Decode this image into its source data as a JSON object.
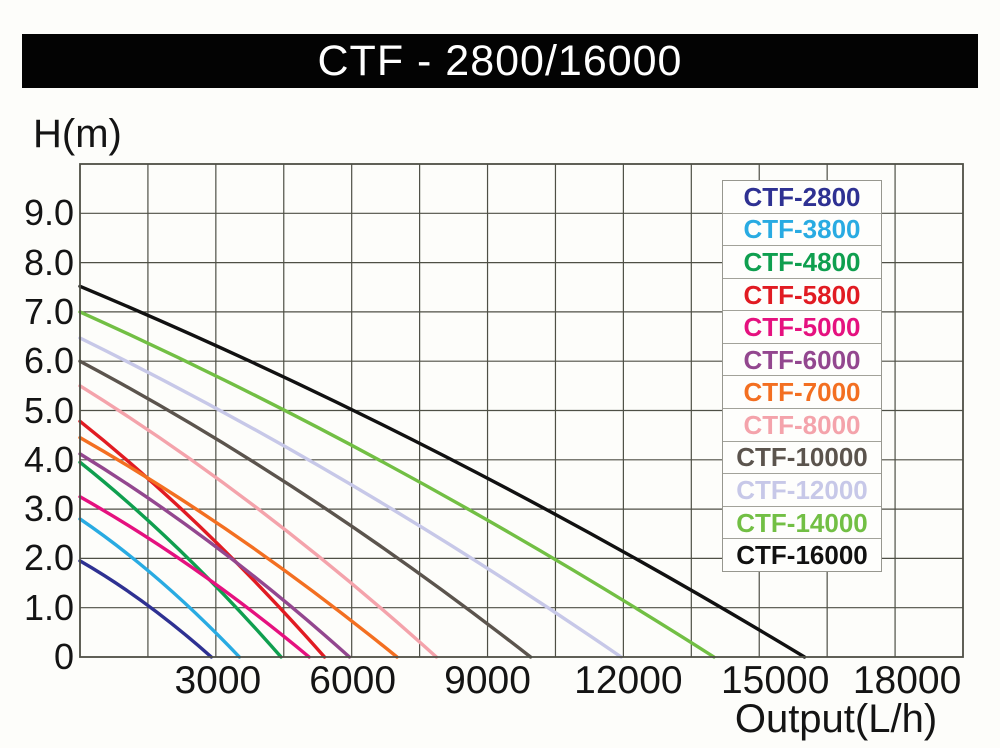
{
  "title_bar": {
    "text": "CTF - 2800/16000"
  },
  "chart_data": {
    "type": "line",
    "title": "CTF - 2800/16000",
    "xlabel": "Output(L/h)",
    "ylabel": "H(m)",
    "xlim": [
      0,
      19500
    ],
    "ylim": [
      0,
      10
    ],
    "x_gridline_step": 1500,
    "y_gridline_step": 1,
    "grid": true,
    "grid_color": "#4e4f45",
    "legend_position": "upper-right",
    "x_ticks": [
      {
        "label": "3000",
        "value": 3000,
        "dx": 2
      },
      {
        "label": "6000",
        "value": 6000,
        "dx": 1
      },
      {
        "label": "9000",
        "value": 9000,
        "dx": 0
      },
      {
        "label": "12000",
        "value": 12000,
        "dx": 5
      },
      {
        "label": "15000",
        "value": 15000,
        "dx": 16
      },
      {
        "label": "18000",
        "value": 18000,
        "dx": 12
      }
    ],
    "y_ticks": [
      {
        "label": "9.0",
        "value": 9
      },
      {
        "label": "8.0",
        "value": 8
      },
      {
        "label": "7.0",
        "value": 7
      },
      {
        "label": "6.0",
        "value": 6
      },
      {
        "label": "5.0",
        "value": 5
      },
      {
        "label": "4.0",
        "value": 4
      },
      {
        "label": "3.0",
        "value": 3
      },
      {
        "label": "2.0",
        "value": 2
      },
      {
        "label": "1.0",
        "value": 1
      },
      {
        "label": "0",
        "value": 0
      }
    ],
    "series": [
      {
        "name": "CTF-2800",
        "color": "#2e3192",
        "shutoff_head_m": 1.95,
        "max_flow_lh": 2900,
        "curve_points": [
          [
            0,
            1.95
          ],
          [
            1450,
            1.08
          ],
          [
            2900,
            0
          ]
        ]
      },
      {
        "name": "CTF-3800",
        "color": "#29abe2",
        "shutoff_head_m": 2.8,
        "max_flow_lh": 3520,
        "curve_points": [
          [
            0,
            2.8
          ],
          [
            1760,
            1.55
          ],
          [
            3520,
            0
          ]
        ]
      },
      {
        "name": "CTF-4800",
        "color": "#0f9f4f",
        "shutoff_head_m": 3.95,
        "max_flow_lh": 4440,
        "curve_points": [
          [
            0,
            3.95
          ],
          [
            2220,
            2.15
          ],
          [
            4440,
            0
          ]
        ]
      },
      {
        "name": "CTF-5800",
        "color": "#e11b22",
        "shutoff_head_m": 4.78,
        "max_flow_lh": 5400,
        "curve_points": [
          [
            0,
            4.78
          ],
          [
            2700,
            2.6
          ],
          [
            5400,
            0
          ]
        ]
      },
      {
        "name": "CTF-5000",
        "color": "#e5117f",
        "shutoff_head_m": 3.25,
        "max_flow_lh": 5060,
        "curve_points": [
          [
            0,
            3.25
          ],
          [
            2530,
            1.78
          ],
          [
            5060,
            0
          ]
        ]
      },
      {
        "name": "CTF-6000",
        "color": "#93478f",
        "shutoff_head_m": 4.12,
        "max_flow_lh": 5950,
        "curve_points": [
          [
            0,
            4.12
          ],
          [
            2980,
            2.25
          ],
          [
            5950,
            0
          ]
        ]
      },
      {
        "name": "CTF-7000",
        "color": "#f36f21",
        "shutoff_head_m": 4.45,
        "max_flow_lh": 7000,
        "curve_points": [
          [
            0,
            4.45
          ],
          [
            3500,
            2.42
          ],
          [
            7000,
            0
          ]
        ]
      },
      {
        "name": "CTF-8000",
        "color": "#f4a3ab",
        "shutoff_head_m": 5.5,
        "max_flow_lh": 7870,
        "curve_points": [
          [
            0,
            5.5
          ],
          [
            3940,
            3.0
          ],
          [
            7870,
            0
          ]
        ]
      },
      {
        "name": "CTF-10000",
        "color": "#5b544d",
        "shutoff_head_m": 6.0,
        "max_flow_lh": 9950,
        "curve_points": [
          [
            0,
            6.0
          ],
          [
            4980,
            3.28
          ],
          [
            9950,
            0
          ]
        ]
      },
      {
        "name": "CTF-12000",
        "color": "#c7c8e8",
        "shutoff_head_m": 6.47,
        "max_flow_lh": 11950,
        "curve_points": [
          [
            0,
            6.47
          ],
          [
            5980,
            3.5
          ],
          [
            11950,
            0
          ]
        ]
      },
      {
        "name": "CTF-14000",
        "color": "#72bf44",
        "shutoff_head_m": 7.0,
        "max_flow_lh": 14000,
        "curve_points": [
          [
            0,
            7.0
          ],
          [
            7000,
            3.8
          ],
          [
            14000,
            0
          ]
        ]
      },
      {
        "name": "CTF-16000",
        "color": "#111111",
        "shutoff_head_m": 7.52,
        "max_flow_lh": 16000,
        "curve_points": [
          [
            0,
            7.52
          ],
          [
            8000,
            4.1
          ],
          [
            16000,
            0
          ]
        ]
      }
    ]
  }
}
